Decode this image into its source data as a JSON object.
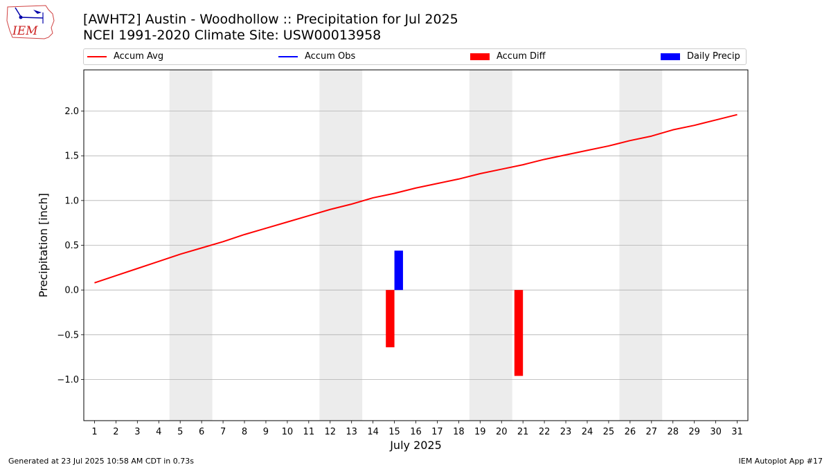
{
  "page": {
    "title_line1": "[AWHT2] Austin - Woodhollow :: Precipitation for Jul 2025",
    "title_line2": "NCEI 1991-2020 Climate Site: USW00013958",
    "logo_text": "IEM",
    "footer_left": "Generated at 23 Jul 2025 10:58 AM CDT in 0.73s",
    "footer_right": "IEM Autoplot App #17"
  },
  "legend": [
    {
      "label": "Accum Avg",
      "kind": "line",
      "color": "#ff0000"
    },
    {
      "label": "Accum Obs",
      "kind": "line",
      "color": "#0000ff"
    },
    {
      "label": "Accum Diff",
      "kind": "rect",
      "color": "#ff0000"
    },
    {
      "label": "Daily Precip",
      "kind": "rect",
      "color": "#0000ff"
    }
  ],
  "chart_data": {
    "type": "line",
    "xlabel": "July 2025",
    "ylabel": "Precipitation [inch]",
    "xlim": [
      0.5,
      31.5
    ],
    "ylim": [
      -1.46,
      2.46
    ],
    "x": [
      1,
      2,
      3,
      4,
      5,
      6,
      7,
      8,
      9,
      10,
      11,
      12,
      13,
      14,
      15,
      16,
      17,
      18,
      19,
      20,
      21,
      22,
      23,
      24,
      25,
      26,
      27,
      28,
      29,
      30,
      31
    ],
    "xticks": [
      "1",
      "2",
      "3",
      "4",
      "5",
      "6",
      "7",
      "8",
      "9",
      "10",
      "11",
      "12",
      "13",
      "14",
      "15",
      "16",
      "17",
      "18",
      "19",
      "20",
      "21",
      "22",
      "23",
      "24",
      "25",
      "26",
      "27",
      "28",
      "29",
      "30",
      "31"
    ],
    "yticks": [
      -1.0,
      -0.5,
      0.0,
      0.5,
      1.0,
      1.5,
      2.0
    ],
    "ytick_labels": [
      "−1.0",
      "−0.5",
      "0.0",
      "0.5",
      "1.0",
      "1.5",
      "2.0"
    ],
    "grid": "horizontal",
    "weekend_shading": [
      [
        4.5,
        6.5
      ],
      [
        11.5,
        13.5
      ],
      [
        18.5,
        20.5
      ],
      [
        25.5,
        27.5
      ]
    ],
    "series": [
      {
        "name": "Accum Avg",
        "type": "line",
        "color": "#ff0000",
        "values": [
          0.08,
          0.16,
          0.24,
          0.32,
          0.4,
          0.47,
          0.54,
          0.62,
          0.69,
          0.76,
          0.83,
          0.9,
          0.96,
          1.03,
          1.08,
          1.14,
          1.19,
          1.24,
          1.3,
          1.35,
          1.4,
          1.46,
          1.51,
          1.56,
          1.61,
          1.67,
          1.72,
          1.79,
          1.84,
          1.9,
          1.96
        ]
      },
      {
        "name": "Accum Diff",
        "type": "bar",
        "color": "#ff0000",
        "points": [
          {
            "x": 14.8,
            "value": -0.64
          },
          {
            "x": 20.8,
            "value": -0.96
          }
        ]
      },
      {
        "name": "Daily Precip",
        "type": "bar",
        "color": "#0000ff",
        "points": [
          {
            "x": 15.2,
            "value": 0.44
          }
        ]
      }
    ]
  }
}
